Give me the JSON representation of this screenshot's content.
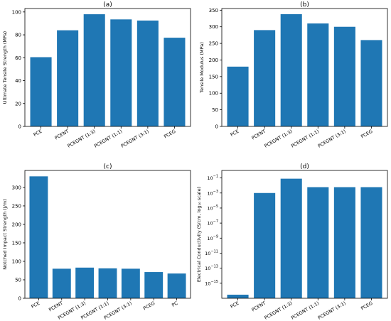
{
  "chart_data": [
    {
      "type": "bar",
      "title": "(a)",
      "xlabel": "",
      "ylabel": "Ultimate Tensile Strength (MPa)",
      "categories": [
        "PCE",
        "PCENT",
        "PCEGNT (1:3)",
        "PCEGNT (1:1)",
        "PCEGNT (3:1)",
        "PCEG"
      ],
      "values": [
        60.5,
        84,
        98,
        93.5,
        92.5,
        77.5
      ],
      "ylim": [
        0,
        103
      ],
      "yticks": [
        0,
        20,
        40,
        60,
        80,
        100
      ],
      "scale": "linear",
      "color": "#1f77b4",
      "grid": false,
      "legend": "none"
    },
    {
      "type": "bar",
      "title": "(b)",
      "xlabel": "",
      "ylabel": "Tensile Modulus (MPa)",
      "categories": [
        "PCE",
        "PCENT",
        "PCEGNT (1:3)",
        "PCEGNT (1:1)",
        "PCEGNT (3:1)",
        "PCEG"
      ],
      "values": [
        180,
        290,
        338,
        310,
        300,
        260
      ],
      "ylim": [
        0,
        355
      ],
      "yticks": [
        0,
        50,
        100,
        150,
        200,
        250,
        300,
        350
      ],
      "scale": "linear",
      "color": "#1f77b4",
      "grid": false,
      "legend": "none"
    },
    {
      "type": "bar",
      "title": "(c)",
      "xlabel": "",
      "ylabel": "Notched Impact Strength (J/m)",
      "categories": [
        "PCE",
        "PCENT",
        "PCEGNT (1:3)",
        "PCEGNT (1:1)",
        "PCEGNT (3:1)",
        "PCEG",
        "PC"
      ],
      "values": [
        330,
        80,
        83,
        81,
        80,
        71,
        67
      ],
      "ylim": [
        0,
        346
      ],
      "yticks": [
        0,
        50,
        100,
        150,
        200,
        250,
        300
      ],
      "scale": "linear",
      "color": "#1f77b4",
      "grid": false,
      "legend": "none"
    },
    {
      "type": "bar",
      "title": "(d)",
      "xlabel": "",
      "ylabel": "Electrical Conductivity (S/cm, log₁₀ scale)",
      "categories": [
        "PCE",
        "PCENT",
        "PCEGNT (1:3)",
        "PCEGNT (1:1)",
        "PCEGNT (3:1)",
        "PCEG"
      ],
      "values": [
        3e-17,
        0.001,
        0.08,
        0.006,
        0.006,
        0.006
      ],
      "ylim": [
        1e-17,
        1
      ],
      "yticks": [
        -15,
        -13,
        -11,
        -9,
        -7,
        -5,
        -3,
        -1
      ],
      "scale": "log10",
      "color": "#1f77b4",
      "grid": false,
      "legend": "none"
    }
  ]
}
